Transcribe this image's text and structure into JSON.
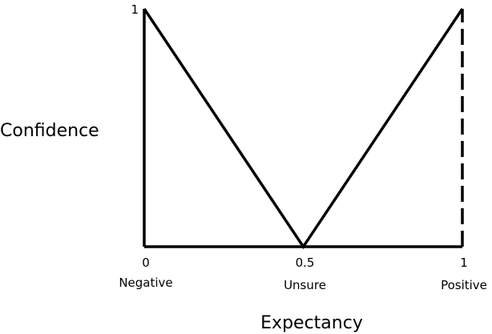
{
  "chart_data": {
    "type": "line",
    "xlabel": "Expectancy",
    "ylabel": "Confidence",
    "xlim": [
      0,
      1
    ],
    "ylim": [
      0,
      1
    ],
    "x_ticks": [
      {
        "value": 0,
        "label": "0",
        "category": "Negative"
      },
      {
        "value": 0.5,
        "label": "0.5",
        "category": "Unsure"
      },
      {
        "value": 1,
        "label": "1",
        "category": "Positive"
      }
    ],
    "y_ticks": [
      {
        "value": 1,
        "label": "1"
      }
    ],
    "series": [
      {
        "values": [
          [
            0,
            1
          ],
          [
            0.5,
            0
          ],
          [
            1,
            1
          ]
        ],
        "style": "solid"
      },
      {
        "values": [
          [
            0,
            0
          ],
          [
            0,
            1
          ]
        ],
        "style": "solid"
      },
      {
        "values": [
          [
            0,
            0
          ],
          [
            1,
            0
          ]
        ],
        "style": "solid"
      },
      {
        "values": [
          [
            1,
            0
          ],
          [
            1,
            1
          ]
        ],
        "style": "dashed"
      }
    ],
    "grid": false,
    "colors": {
      "line": "#000000",
      "background": "#ffffff"
    }
  }
}
